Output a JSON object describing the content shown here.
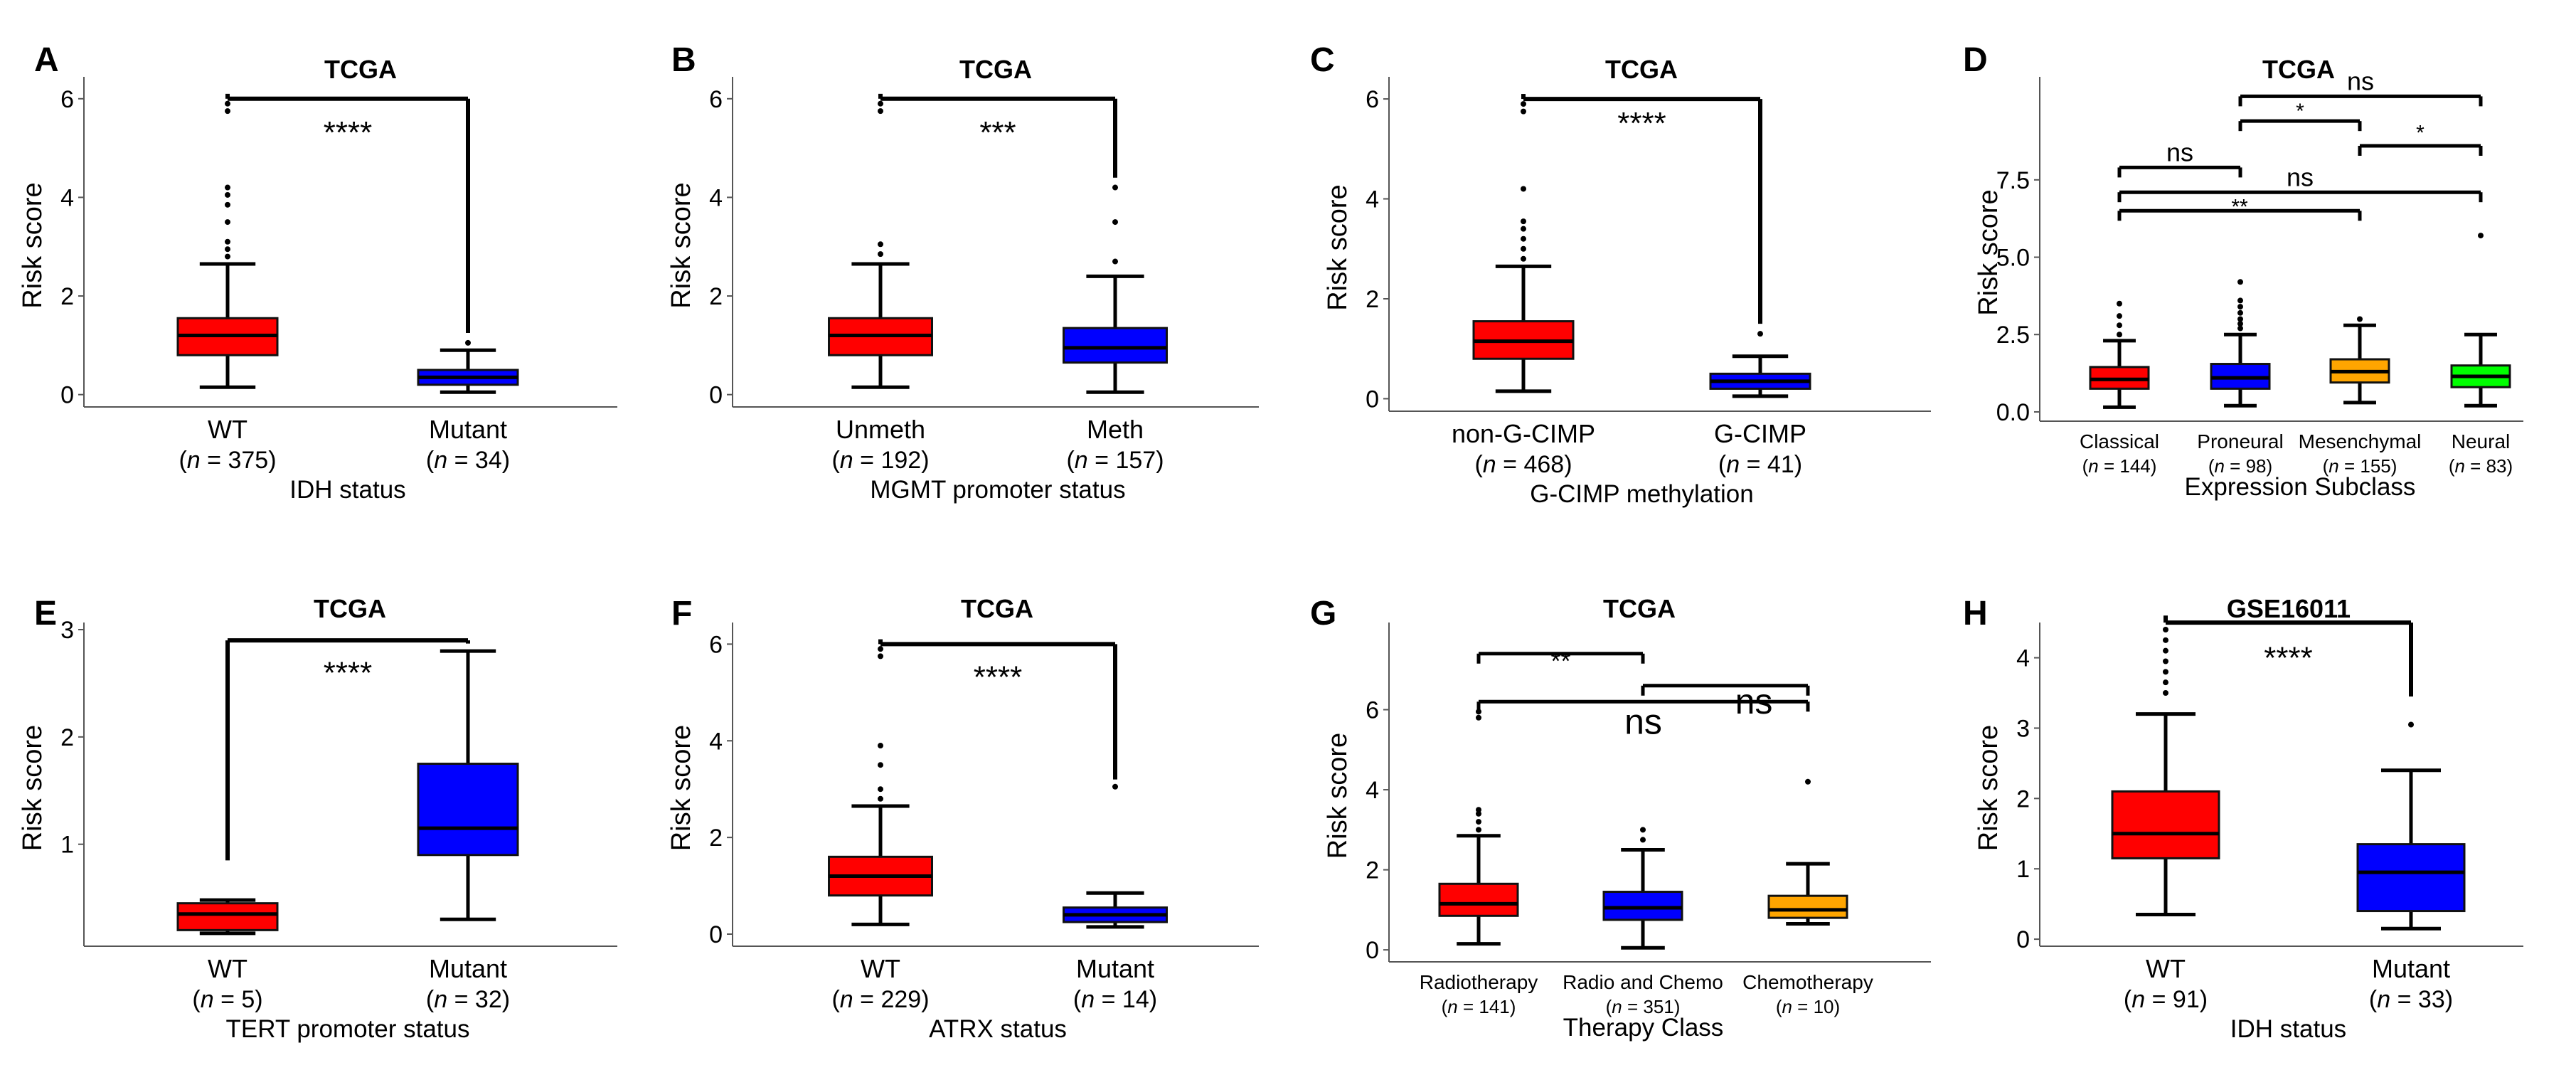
{
  "chart_data": [
    {
      "type": "box",
      "panel": "A",
      "title": "TCGA",
      "xlabel": "IDH status",
      "ylabel": "Risk score",
      "ylim": [
        -0.25,
        6.3
      ],
      "yticks": [
        0,
        2,
        4,
        6
      ],
      "categories": [
        {
          "name": "WT",
          "n": "375",
          "color": "#ff0000",
          "q1": 0.8,
          "median": 1.2,
          "q3": 1.55,
          "lower": 0.15,
          "upper": 2.65,
          "outliers": [
            2.8,
            2.95,
            3.1,
            3.5,
            3.85,
            4.05,
            4.2,
            5.75,
            5.9
          ]
        },
        {
          "name": "Mutant",
          "n": "34",
          "color": "#0000ff",
          "q1": 0.2,
          "median": 0.35,
          "q3": 0.5,
          "lower": 0.05,
          "upper": 0.9,
          "outliers": [
            1.05
          ]
        }
      ],
      "brackets": [
        {
          "from": 0,
          "to": 1,
          "y": 6.0,
          "label": "****",
          "label_y": 5.1,
          "size": "big"
        }
      ]
    },
    {
      "type": "box",
      "panel": "B",
      "title": "TCGA",
      "xlabel": "MGMT promoter status",
      "ylabel": "Risk score",
      "ylim": [
        -0.25,
        6.3
      ],
      "yticks": [
        0,
        2,
        4,
        6
      ],
      "categories": [
        {
          "name": "Unmeth",
          "n": "192",
          "color": "#ff0000",
          "q1": 0.8,
          "median": 1.2,
          "q3": 1.55,
          "lower": 0.15,
          "upper": 2.65,
          "outliers": [
            2.85,
            3.05,
            5.75,
            5.9
          ]
        },
        {
          "name": "Meth",
          "n": "157",
          "color": "#0000ff",
          "q1": 0.65,
          "median": 0.95,
          "q3": 1.35,
          "lower": 0.05,
          "upper": 2.4,
          "outliers": [
            2.7,
            3.5,
            4.2
          ]
        }
      ],
      "brackets": [
        {
          "from": 0,
          "to": 1,
          "y": 6.0,
          "label": "***",
          "label_y": 5.1,
          "size": "big"
        }
      ]
    },
    {
      "type": "box",
      "panel": "C",
      "title": "TCGA",
      "xlabel": "G-CIMP methylation",
      "ylabel": "Risk score",
      "ylim": [
        -0.25,
        6.3
      ],
      "yticks": [
        0,
        2,
        4,
        6
      ],
      "categories": [
        {
          "name": "non-G-CIMP",
          "n": "468",
          "color": "#ff0000",
          "q1": 0.8,
          "median": 1.15,
          "q3": 1.55,
          "lower": 0.15,
          "upper": 2.65,
          "outliers": [
            2.8,
            3.0,
            3.2,
            3.4,
            3.55,
            4.2,
            5.75,
            5.9
          ]
        },
        {
          "name": "G-CIMP",
          "n": "41",
          "color": "#0000ff",
          "q1": 0.2,
          "median": 0.35,
          "q3": 0.5,
          "lower": 0.05,
          "upper": 0.85,
          "outliers": [
            1.3
          ]
        }
      ],
      "brackets": [
        {
          "from": 0,
          "to": 1,
          "y": 6.0,
          "label": "****",
          "label_y": 5.3,
          "size": "big"
        }
      ]
    },
    {
      "type": "box",
      "panel": "D",
      "title": "TCGA",
      "xlabel": "Expression Subclass",
      "ylabel": "Risk score",
      "ylim": [
        -0.3,
        10.6
      ],
      "yticks": [
        0.0,
        2.5,
        5.0,
        7.5
      ],
      "ytick_labels": [
        "0.0",
        "2.5",
        "5.0",
        "7.5"
      ],
      "categories": [
        {
          "name": "Classical",
          "n": "144",
          "color": "#ff0000",
          "q1": 0.75,
          "median": 1.05,
          "q3": 1.45,
          "lower": 0.15,
          "upper": 2.3,
          "outliers": [
            2.5,
            2.8,
            3.1,
            3.5
          ]
        },
        {
          "name": "Proneural",
          "n": "98",
          "color": "#0000ff",
          "q1": 0.75,
          "median": 1.1,
          "q3": 1.55,
          "lower": 0.2,
          "upper": 2.5,
          "outliers": [
            2.7,
            2.85,
            3.0,
            3.2,
            3.4,
            3.6,
            4.2
          ]
        },
        {
          "name": "Mesenchymal",
          "n": "155",
          "color": "#ffa500",
          "q1": 0.95,
          "median": 1.3,
          "q3": 1.7,
          "lower": 0.3,
          "upper": 2.8,
          "outliers": [
            3.0
          ]
        },
        {
          "name": "Neural",
          "n": "83",
          "color": "#00ff00",
          "q1": 0.8,
          "median": 1.15,
          "q3": 1.5,
          "lower": 0.2,
          "upper": 2.5,
          "outliers": [
            5.7
          ]
        }
      ],
      "brackets": [
        {
          "from": 0,
          "to": 1,
          "y": 7.9,
          "label": "ns",
          "label_y": 8.1,
          "size": "mid"
        },
        {
          "from": 0,
          "to": 3,
          "y": 7.1,
          "label": "ns",
          "label_y": 7.3,
          "size": "mid"
        },
        {
          "from": 0,
          "to": 2,
          "y": 6.5,
          "label": "**",
          "label_y": 6.4,
          "size": "small"
        },
        {
          "from": 1,
          "to": 3,
          "y": 10.2,
          "label": "ns",
          "label_y": 10.4,
          "size": "mid"
        },
        {
          "from": 1,
          "to": 2,
          "y": 9.4,
          "label": "*",
          "label_y": 9.5,
          "size": "small"
        },
        {
          "from": 2,
          "to": 3,
          "y": 8.6,
          "label": "*",
          "label_y": 8.8,
          "size": "small"
        }
      ]
    },
    {
      "type": "box",
      "panel": "E",
      "title": "TCGA",
      "xlabel": "TERT promoter status",
      "ylabel": "Risk score",
      "ylim": [
        0.05,
        3.0
      ],
      "yticks": [
        1,
        2,
        3
      ],
      "categories": [
        {
          "name": "WT",
          "n": "5",
          "color": "#ff0000",
          "q1": 0.2,
          "median": 0.35,
          "q3": 0.45,
          "lower": 0.17,
          "upper": 0.48,
          "outliers": []
        },
        {
          "name": "Mutant",
          "n": "32",
          "color": "#0000ff",
          "q1": 0.9,
          "median": 1.15,
          "q3": 1.75,
          "lower": 0.3,
          "upper": 2.8,
          "outliers": []
        }
      ],
      "brackets": [
        {
          "from": 0,
          "to": 1,
          "y": 2.9,
          "label": "****",
          "label_y": 2.5,
          "size": "big",
          "left_drop": 0.85,
          "right_drop": 2.87
        }
      ]
    },
    {
      "type": "box",
      "panel": "F",
      "title": "TCGA",
      "xlabel": "ATRX status",
      "ylabel": "Risk score",
      "ylim": [
        -0.25,
        6.3
      ],
      "yticks": [
        0,
        2,
        4,
        6
      ],
      "categories": [
        {
          "name": "WT",
          "n": "229",
          "color": "#ff0000",
          "q1": 0.8,
          "median": 1.2,
          "q3": 1.6,
          "lower": 0.2,
          "upper": 2.65,
          "outliers": [
            2.8,
            3.0,
            3.5,
            3.9,
            5.75,
            5.9
          ]
        },
        {
          "name": "Mutant",
          "n": "14",
          "color": "#0000ff",
          "q1": 0.25,
          "median": 0.4,
          "q3": 0.55,
          "lower": 0.15,
          "upper": 0.85,
          "outliers": [
            3.05
          ]
        }
      ],
      "brackets": [
        {
          "from": 0,
          "to": 1,
          "y": 6.0,
          "label": "****",
          "label_y": 5.1,
          "size": "big",
          "right_drop": 3.2
        }
      ]
    },
    {
      "type": "box",
      "panel": "G",
      "title": "TCGA",
      "xlabel": "Therapy Class",
      "ylabel": "Risk score",
      "ylim": [
        -0.3,
        8.0
      ],
      "yticks": [
        0,
        2,
        4,
        6
      ],
      "categories": [
        {
          "name": "Radiotherapy",
          "n": "141",
          "color": "#ff0000",
          "q1": 0.85,
          "median": 1.15,
          "q3": 1.65,
          "lower": 0.15,
          "upper": 2.85,
          "outliers": [
            3.0,
            3.2,
            3.4,
            3.5,
            5.8,
            5.95
          ]
        },
        {
          "name": "Radio and Chemo",
          "n": "351",
          "color": "#0000ff",
          "q1": 0.75,
          "median": 1.05,
          "q3": 1.45,
          "lower": 0.05,
          "upper": 2.5,
          "outliers": [
            2.75,
            3.0
          ]
        },
        {
          "name": "Chemotherapy",
          "n": "10",
          "color": "#ffa500",
          "q1": 0.8,
          "median": 1.0,
          "q3": 1.35,
          "lower": 0.65,
          "upper": 2.15,
          "outliers": [
            4.2
          ]
        }
      ],
      "brackets": [
        {
          "from": 0,
          "to": 1,
          "y": 7.4,
          "label": "**",
          "label_y": 7.0,
          "size": "mid"
        },
        {
          "from": 1,
          "to": 2,
          "y": 6.6,
          "label": "ns",
          "label_y": 5.9,
          "size": "large"
        },
        {
          "from": 0,
          "to": 2,
          "y": 6.2,
          "label": "ns",
          "label_y": 5.4,
          "size": "large"
        }
      ]
    },
    {
      "type": "box",
      "panel": "H",
      "title": "GSE16011",
      "xlabel": "IDH status",
      "ylabel": "Risk score",
      "ylim": [
        -0.1,
        4.4
      ],
      "yticks": [
        0,
        1,
        2,
        3,
        4
      ],
      "categories": [
        {
          "name": "WT",
          "n": "91",
          "color": "#ff0000",
          "q1": 1.15,
          "median": 1.5,
          "q3": 2.1,
          "lower": 0.35,
          "upper": 3.2,
          "outliers": [
            3.5,
            3.65,
            3.8,
            3.95,
            4.1,
            4.25,
            4.4
          ]
        },
        {
          "name": "Mutant",
          "n": "33",
          "color": "#0000ff",
          "q1": 0.4,
          "median": 0.95,
          "q3": 1.35,
          "lower": 0.15,
          "upper": 2.4,
          "outliers": [
            3.05
          ]
        }
      ],
      "brackets": [
        {
          "from": 0,
          "to": 1,
          "y": 4.5,
          "label": "****",
          "label_y": 3.85,
          "size": "big",
          "right_drop": 3.45
        }
      ]
    }
  ]
}
